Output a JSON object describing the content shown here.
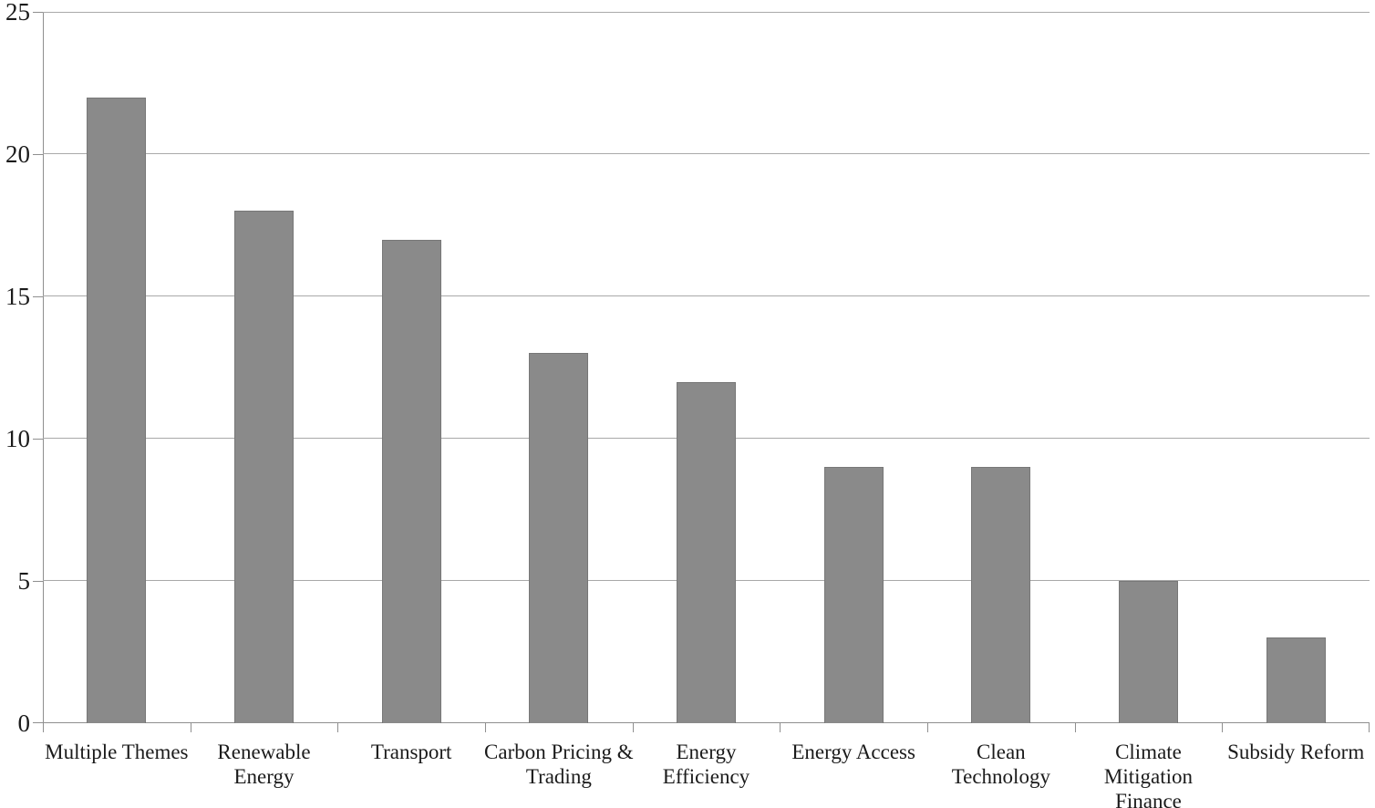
{
  "chart_data": {
    "type": "bar",
    "title": "",
    "xlabel": "",
    "ylabel": "",
    "categories": [
      "Multiple Themes",
      "Renewable Energy",
      "Transport",
      "Carbon Pricing & Trading",
      "Energy Efficiency",
      "Energy Access",
      "Clean Technology",
      "Climate Mitigation Finance",
      "Subsidy Reform"
    ],
    "category_label_lines": [
      [
        "Multiple Themes"
      ],
      [
        "Renewable",
        "Energy"
      ],
      [
        "Transport"
      ],
      [
        "Carbon Pricing &",
        "Trading"
      ],
      [
        "Energy",
        "Efficiency"
      ],
      [
        "Energy Access"
      ],
      [
        "Clean",
        "Technology"
      ],
      [
        "Climate",
        "Mitigation",
        "Finance"
      ],
      [
        "Subsidy Reform"
      ]
    ],
    "values": [
      22,
      18,
      17,
      13,
      12,
      9,
      9,
      5,
      3
    ],
    "ylim": [
      0,
      25
    ],
    "yticks": [
      0,
      5,
      10,
      15,
      20,
      25
    ],
    "grid": true,
    "legend_position": "none",
    "colors": {
      "bar_fill": "#8a8a8a",
      "bar_border": "#777777",
      "gridline": "#a9a9a9",
      "axis": "#8f8f8f",
      "text": "#1b1b1b",
      "background": "#ffffff"
    }
  }
}
